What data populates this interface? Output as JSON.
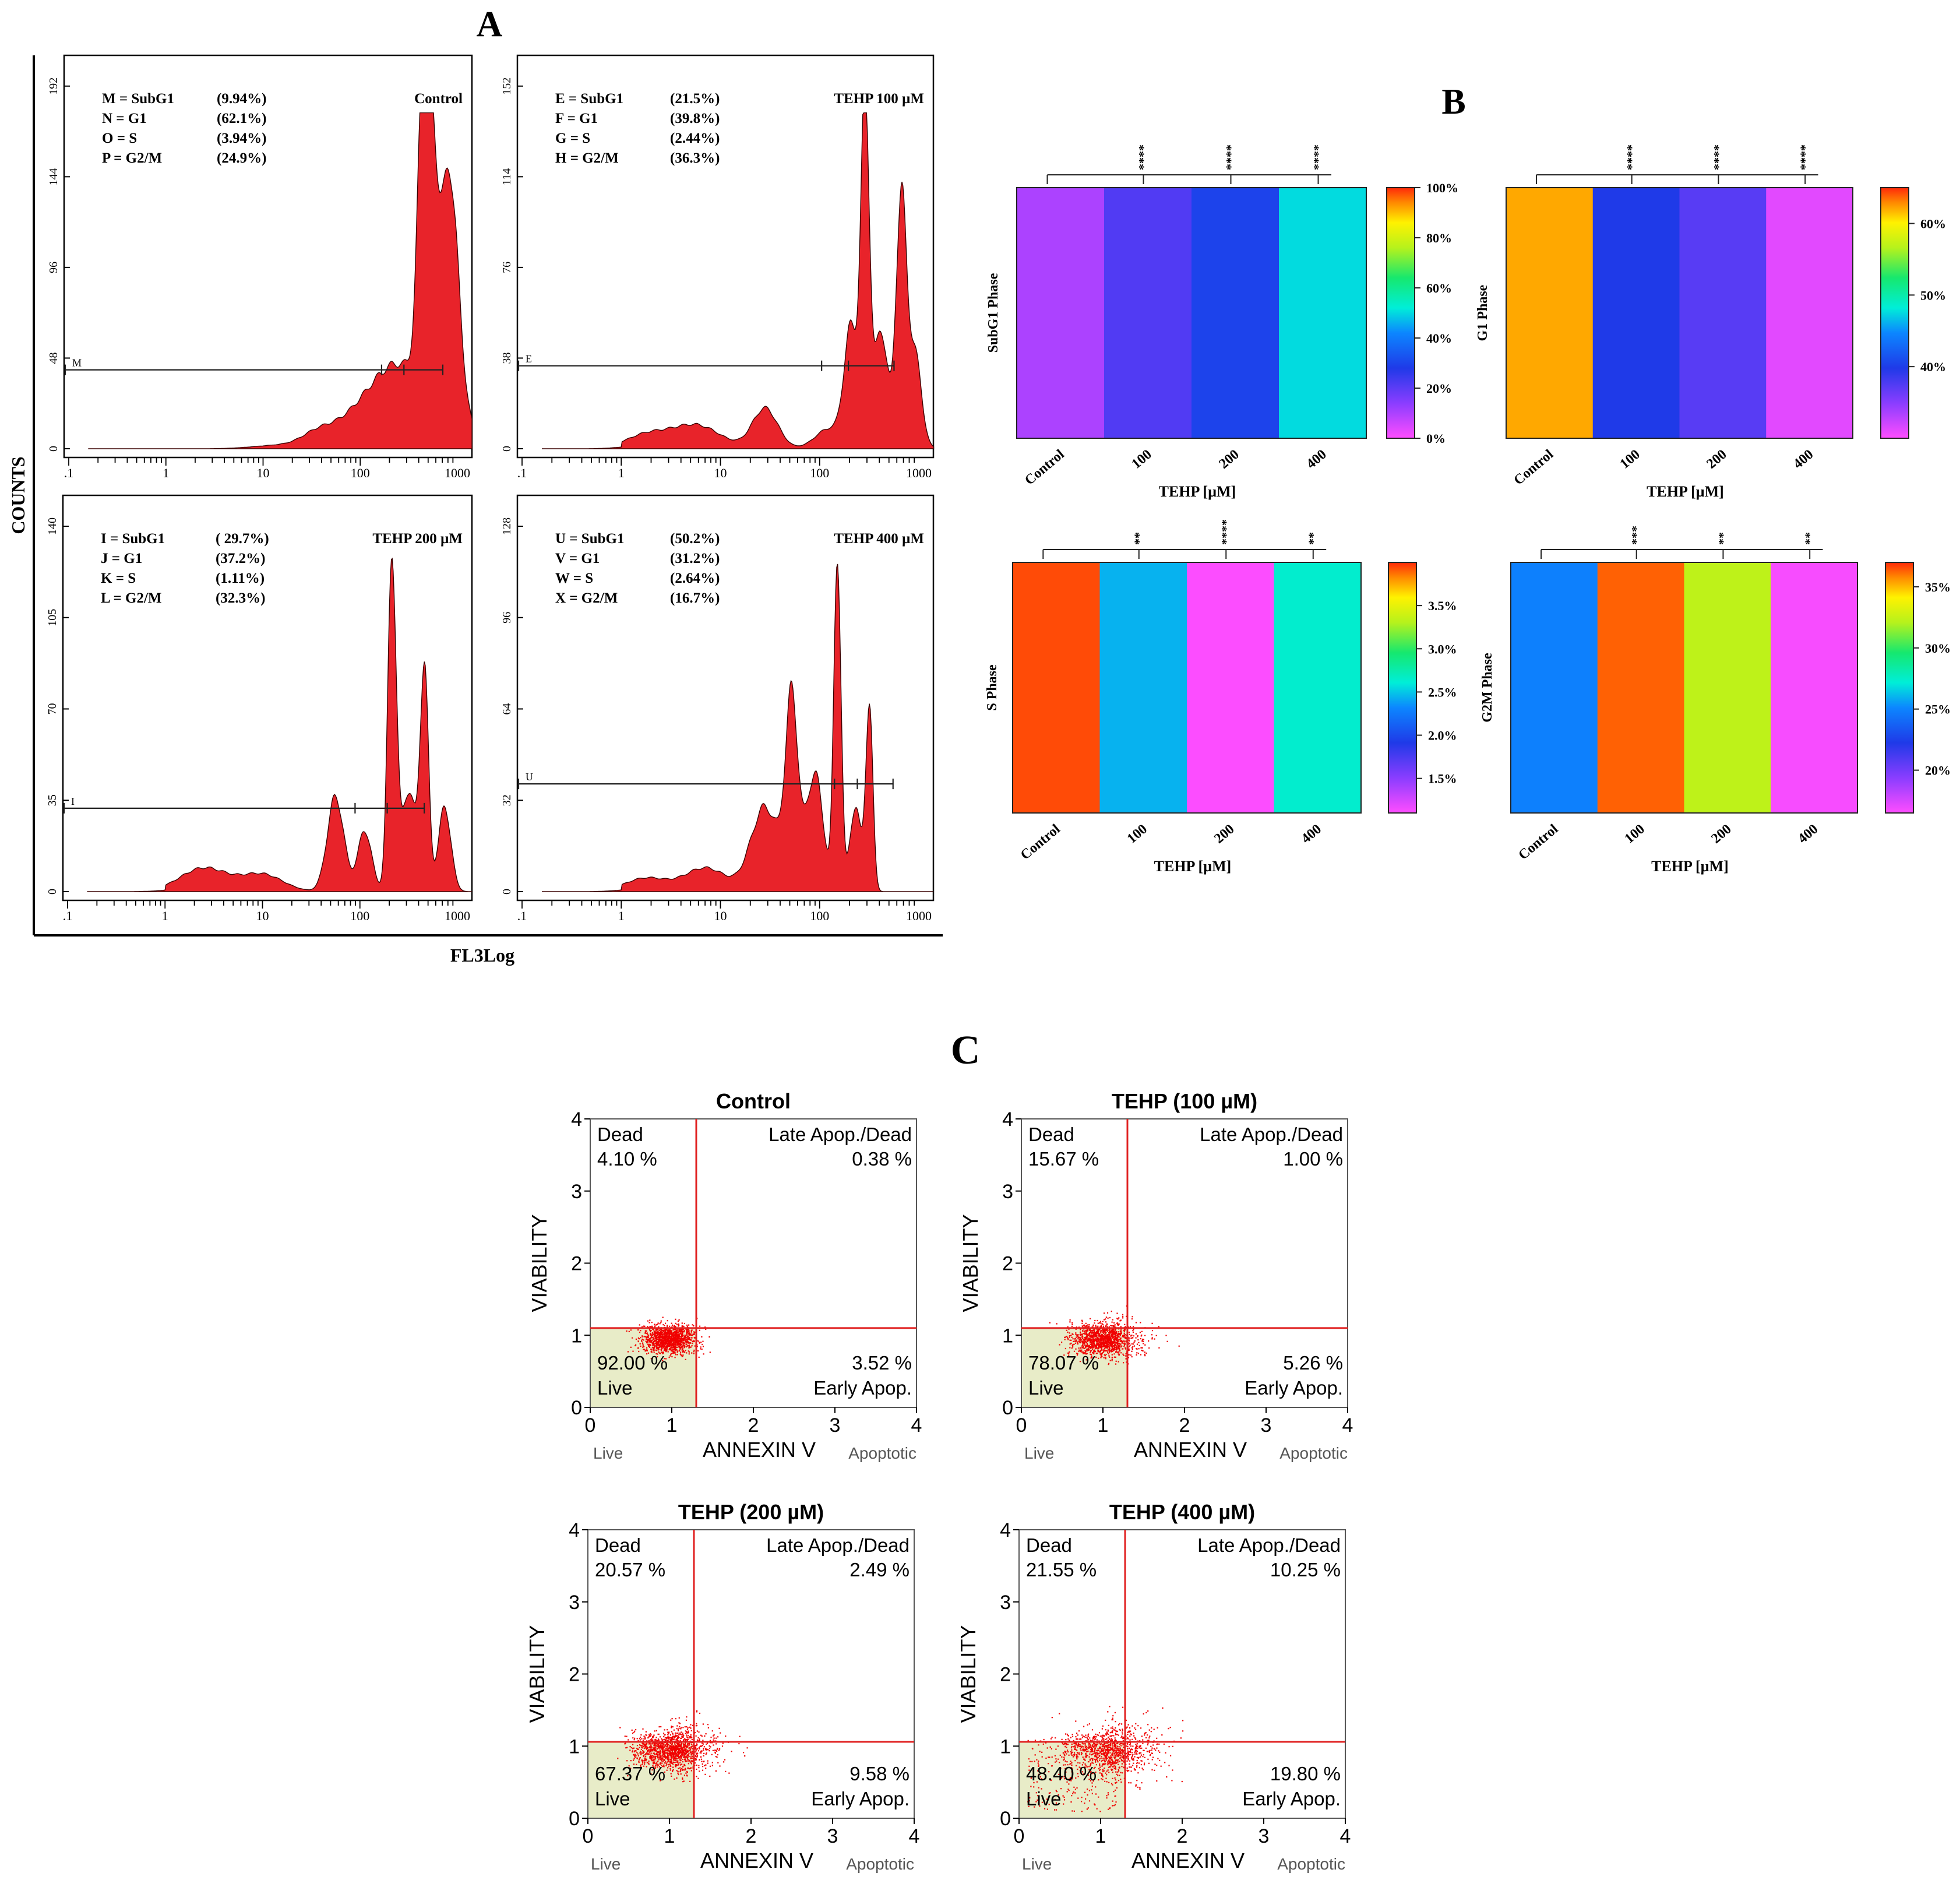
{
  "panel_letters": {
    "a": "A",
    "b": "B",
    "c": "C"
  },
  "panel_a": {
    "y_label": "COUNTS",
    "x_label": "FL3Log",
    "x_ticks": [
      ".1",
      "1",
      "10",
      "100",
      "1000"
    ],
    "histograms": [
      {
        "title": "Control",
        "y_ticks": [
          "0",
          "48",
          "96",
          "144",
          "192"
        ],
        "gate_label": "M",
        "legend": [
          [
            "M = SubG1",
            "(9.94%)"
          ],
          [
            "N = G1",
            "(62.1%)"
          ],
          [
            "O = S",
            "(3.94%)"
          ],
          [
            "P = G2/M",
            "(24.9%)"
          ]
        ]
      },
      {
        "title": "TEHP 100 µM",
        "y_ticks": [
          "0",
          "38",
          "76",
          "114",
          "152"
        ],
        "gate_label": "E",
        "legend": [
          [
            "E = SubG1",
            "(21.5%)"
          ],
          [
            "F = G1",
            "(39.8%)"
          ],
          [
            "G = S",
            "(2.44%)"
          ],
          [
            "H = G2/M",
            "(36.3%)"
          ]
        ]
      },
      {
        "title": "TEHP 200 µM",
        "y_ticks": [
          "0",
          "35",
          "70",
          "105",
          "140"
        ],
        "gate_label": "I",
        "legend": [
          [
            "I = SubG1",
            "( 29.7%)"
          ],
          [
            "J = G1",
            "(37.2%)"
          ],
          [
            "K = S",
            "(1.11%)"
          ],
          [
            "L = G2/M",
            "(32.3%)"
          ]
        ]
      },
      {
        "title": "TEHP 400 µM",
        "y_ticks": [
          "0",
          "32",
          "64",
          "96",
          "128"
        ],
        "gate_label": "U",
        "legend": [
          [
            "U = SubG1",
            "(50.2%)"
          ],
          [
            "V = G1",
            "(31.2%)"
          ],
          [
            "W = S",
            "(2.64%)"
          ],
          [
            "X = G2/M",
            "(16.7%)"
          ]
        ]
      }
    ]
  },
  "panel_b": {
    "xlabel": "TEHP [µM]",
    "categories": [
      "Control",
      "100",
      "200",
      "400"
    ],
    "heatmaps": [
      {
        "ylabel": "SubG1 Phase",
        "values": [
          9.94,
          21.5,
          29.7,
          50.2
        ],
        "range": [
          0,
          100
        ],
        "colorbar_ticks": [
          [
            "100%",
            100
          ],
          [
            "80%",
            80
          ],
          [
            "60%",
            60
          ],
          [
            "40%",
            40
          ],
          [
            "20%",
            20
          ],
          [
            "0%",
            0
          ]
        ],
        "sig": [
          "****",
          "****",
          "****"
        ]
      },
      {
        "ylabel": "G1 Phase",
        "values": [
          62.1,
          39.8,
          37.2,
          31.2
        ],
        "range": [
          30,
          65
        ],
        "colorbar_ticks": [
          [
            "60%",
            60
          ],
          [
            "50%",
            50
          ],
          [
            "40%",
            40
          ]
        ],
        "sig": [
          "****",
          "****",
          "****"
        ]
      },
      {
        "ylabel": "S Phase",
        "values": [
          3.94,
          2.44,
          1.11,
          2.64
        ],
        "range": [
          1.1,
          4.0
        ],
        "colorbar_ticks": [
          [
            "3.5%",
            3.5
          ],
          [
            "3.0%",
            3.0
          ],
          [
            "2.5%",
            2.5
          ],
          [
            "2.0%",
            2.0
          ],
          [
            "1.5%",
            1.5
          ]
        ],
        "sig": [
          "**",
          "****",
          "**"
        ]
      },
      {
        "ylabel": "G2M Phase",
        "values": [
          24.9,
          36.3,
          32.3,
          16.7
        ],
        "range": [
          16.5,
          37
        ],
        "colorbar_ticks": [
          [
            "35%",
            35
          ],
          [
            "30%",
            30
          ],
          [
            "25%",
            25
          ],
          [
            "20%",
            20
          ]
        ],
        "sig": [
          "***",
          "**",
          "**"
        ]
      }
    ]
  },
  "panel_c": {
    "xlabel": "ANNEXIN V",
    "ylabel": "VIABILITY",
    "x_left_label": "Live",
    "x_right_label": "Apoptotic",
    "ticks": [
      "0",
      "1",
      "2",
      "3",
      "4"
    ],
    "quadrant_names": {
      "dead": "Dead",
      "late": "Late Apop./Dead",
      "live": "Live",
      "early": "Early Apop."
    },
    "plots": [
      {
        "title": "Control",
        "dead": "4.10 %",
        "late": "0.38 %",
        "live": "92.00 %",
        "early": "3.52 %"
      },
      {
        "title": "TEHP (100 µM)",
        "dead": "15.67 %",
        "late": "1.00 %",
        "live": "78.07 %",
        "early": "5.26 %"
      },
      {
        "title": "TEHP (200 µM)",
        "dead": "20.57 %",
        "late": "2.49 %",
        "live": "67.37 %",
        "early": "9.58 %"
      },
      {
        "title": "TEHP (400 µM)",
        "dead": "21.55 %",
        "late": "10.25 %",
        "live": "48.40 %",
        "early": "19.80 %"
      }
    ]
  },
  "chart_data": [
    {
      "type": "heatmap",
      "ylabel": "SubG1 Phase",
      "xlabel": "TEHP [µM]",
      "categories": [
        "Control",
        "100",
        "200",
        "400"
      ],
      "values": [
        9.94,
        21.5,
        29.7,
        50.2
      ]
    },
    {
      "type": "heatmap",
      "ylabel": "G1 Phase",
      "xlabel": "TEHP [µM]",
      "categories": [
        "Control",
        "100",
        "200",
        "400"
      ],
      "values": [
        62.1,
        39.8,
        37.2,
        31.2
      ]
    },
    {
      "type": "heatmap",
      "ylabel": "S Phase",
      "xlabel": "TEHP [µM]",
      "categories": [
        "Control",
        "100",
        "200",
        "400"
      ],
      "values": [
        3.94,
        2.44,
        1.11,
        2.64
      ]
    },
    {
      "type": "heatmap",
      "ylabel": "G2M Phase",
      "xlabel": "TEHP [µM]",
      "categories": [
        "Control",
        "100",
        "200",
        "400"
      ],
      "values": [
        24.9,
        36.3,
        32.3,
        16.7
      ]
    },
    {
      "type": "scatter",
      "xlabel": "ANNEXIN V",
      "ylabel": "VIABILITY",
      "xlim": [
        0,
        4
      ],
      "ylim": [
        0,
        4
      ],
      "series": [
        {
          "name": "Control",
          "values": {
            "Dead": 4.1,
            "Late Apop./Dead": 0.38,
            "Live": 92.0,
            "Early Apop.": 3.52
          }
        },
        {
          "name": "TEHP (100 µM)",
          "values": {
            "Dead": 15.67,
            "Late Apop./Dead": 1.0,
            "Live": 78.07,
            "Early Apop.": 5.26
          }
        },
        {
          "name": "TEHP (200 µM)",
          "values": {
            "Dead": 20.57,
            "Late Apop./Dead": 2.49,
            "Live": 67.37,
            "Early Apop.": 9.58
          }
        },
        {
          "name": "TEHP (400 µM)",
          "values": {
            "Dead": 21.55,
            "Late Apop./Dead": 10.25,
            "Live": 48.4,
            "Early Apop.": 19.8
          }
        }
      ]
    }
  ]
}
